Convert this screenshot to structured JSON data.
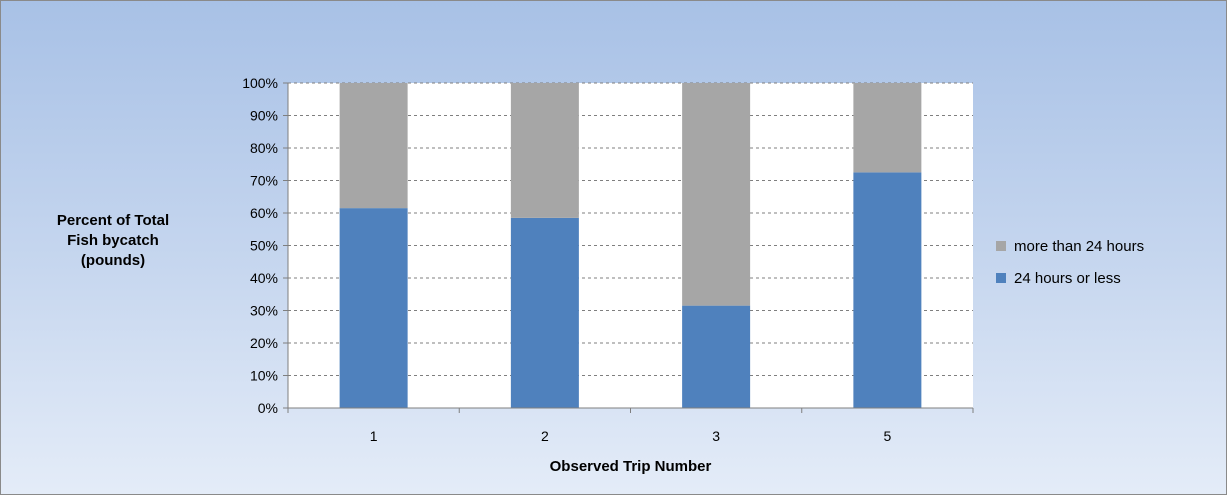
{
  "chart_data": {
    "type": "bar",
    "stacked": true,
    "categories": [
      "1",
      "2",
      "3",
      "5"
    ],
    "series": [
      {
        "name": "24 hours or less",
        "values": [
          61.5,
          58.5,
          31.5,
          72.5
        ],
        "color": "#4f81bd"
      },
      {
        "name": "more than 24 hours",
        "values": [
          38.5,
          41.5,
          68.5,
          27.5
        ],
        "color": "#a6a6a6"
      }
    ],
    "ylabel_lines": [
      "Percent of Total",
      "Fish bycatch",
      "(pounds)"
    ],
    "xlabel": "Observed Trip Number",
    "ylim": [
      0,
      100
    ],
    "yticks": [
      "0%",
      "10%",
      "20%",
      "30%",
      "40%",
      "50%",
      "60%",
      "70%",
      "80%",
      "90%",
      "100%"
    ],
    "grid": true,
    "legend_position": "right"
  }
}
